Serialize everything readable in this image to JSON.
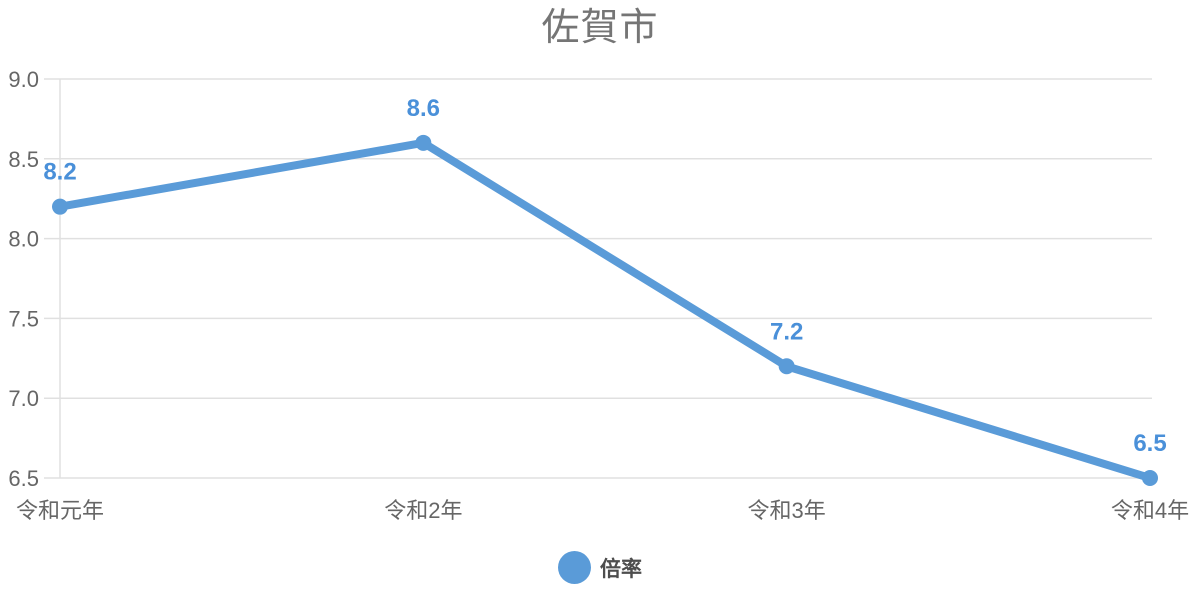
{
  "chart_data": {
    "type": "line",
    "title": "佐賀市",
    "categories": [
      "令和元年",
      "令和2年",
      "令和3年",
      "令和4年"
    ],
    "series": [
      {
        "name": "倍率",
        "values": [
          8.2,
          8.6,
          7.2,
          6.5
        ],
        "data_labels": [
          "8.2",
          "8.6",
          "7.2",
          "6.5"
        ]
      }
    ],
    "ylim": [
      6.5,
      9.0
    ],
    "yticks": [
      9.0,
      8.5,
      8.0,
      7.5,
      7.0,
      6.5
    ],
    "ytick_labels": [
      "9.0",
      "8.5",
      "8.0",
      "7.5",
      "7.0",
      "6.5"
    ],
    "xlabel": "",
    "ylabel": "",
    "grid": "horizontal",
    "legend_position": "bottom",
    "colors": {
      "line": "#5a9bd8",
      "point": "#5a9bd8",
      "data_label": "#4a90d9",
      "grid": "#e0e0e0",
      "axis_text": "#666666",
      "title_text": "#757575",
      "legend_text": "#4d4d4d"
    }
  }
}
